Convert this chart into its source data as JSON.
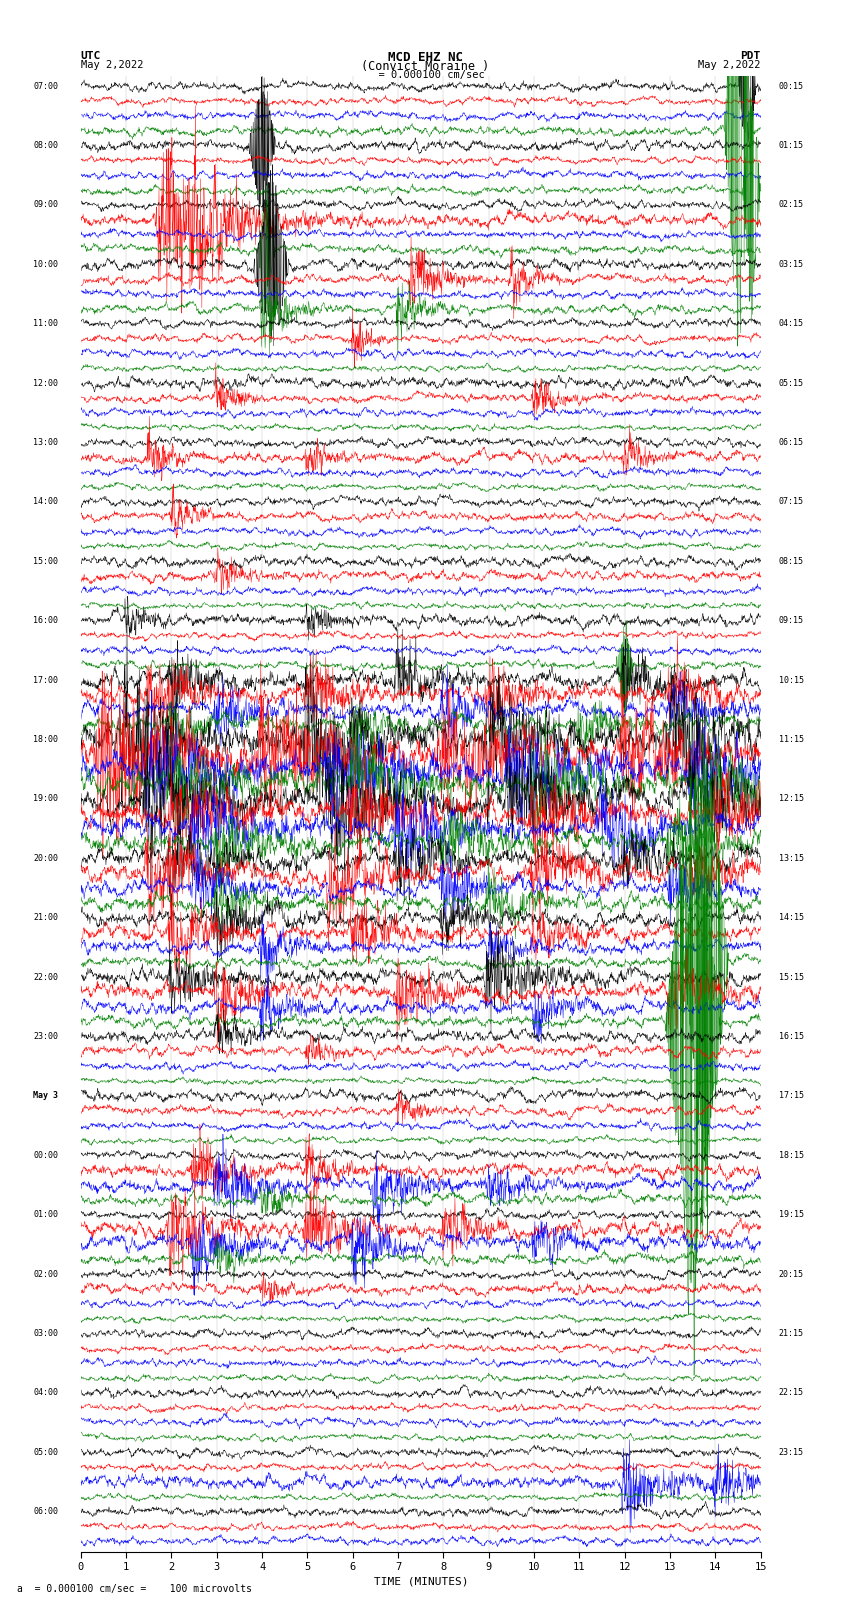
{
  "title_line1": "MCD EHZ NC",
  "title_line2": "(Convict Moraine )",
  "scale_label": "  = 0.000100 cm/sec",
  "bottom_label": "a  = 0.000100 cm/sec =    100 microvolts",
  "xlabel": "TIME (MINUTES)",
  "utc_label": "UTC",
  "utc_date": "May 2,2022",
  "pdt_label": "PDT",
  "pdt_date": "May 2,2022",
  "left_times": [
    "07:00",
    "",
    "",
    "",
    "08:00",
    "",
    "",
    "",
    "09:00",
    "",
    "",
    "",
    "10:00",
    "",
    "",
    "",
    "11:00",
    "",
    "",
    "",
    "12:00",
    "",
    "",
    "",
    "13:00",
    "",
    "",
    "",
    "14:00",
    "",
    "",
    "",
    "15:00",
    "",
    "",
    "",
    "16:00",
    "",
    "",
    "",
    "17:00",
    "",
    "",
    "",
    "18:00",
    "",
    "",
    "",
    "19:00",
    "",
    "",
    "",
    "20:00",
    "",
    "",
    "",
    "21:00",
    "",
    "",
    "",
    "22:00",
    "",
    "",
    "",
    "23:00",
    "",
    "",
    "",
    "May 3",
    "",
    "",
    "",
    "00:00",
    "",
    "",
    "",
    "01:00",
    "",
    "",
    "",
    "02:00",
    "",
    "",
    "",
    "03:00",
    "",
    "",
    "",
    "04:00",
    "",
    "",
    "",
    "05:00",
    "",
    "",
    "",
    "06:00",
    "",
    ""
  ],
  "right_times": [
    "00:15",
    "",
    "",
    "",
    "01:15",
    "",
    "",
    "",
    "02:15",
    "",
    "",
    "",
    "03:15",
    "",
    "",
    "",
    "04:15",
    "",
    "",
    "",
    "05:15",
    "",
    "",
    "",
    "06:15",
    "",
    "",
    "",
    "07:15",
    "",
    "",
    "",
    "08:15",
    "",
    "",
    "",
    "09:15",
    "",
    "",
    "",
    "10:15",
    "",
    "",
    "",
    "11:15",
    "",
    "",
    "",
    "12:15",
    "",
    "",
    "",
    "13:15",
    "",
    "",
    "",
    "14:15",
    "",
    "",
    "",
    "15:15",
    "",
    "",
    "",
    "16:15",
    "",
    "",
    "",
    "17:15",
    "",
    "",
    "",
    "18:15",
    "",
    "",
    "",
    "19:15",
    "",
    "",
    "",
    "20:15",
    "",
    "",
    "",
    "21:15",
    "",
    "",
    "",
    "22:15",
    "",
    "",
    "",
    "23:15",
    "",
    ""
  ],
  "colors": [
    "black",
    "red",
    "blue",
    "green"
  ],
  "n_rows": 99,
  "n_points": 2000,
  "fig_width": 8.5,
  "fig_height": 16.13,
  "dpi": 100
}
